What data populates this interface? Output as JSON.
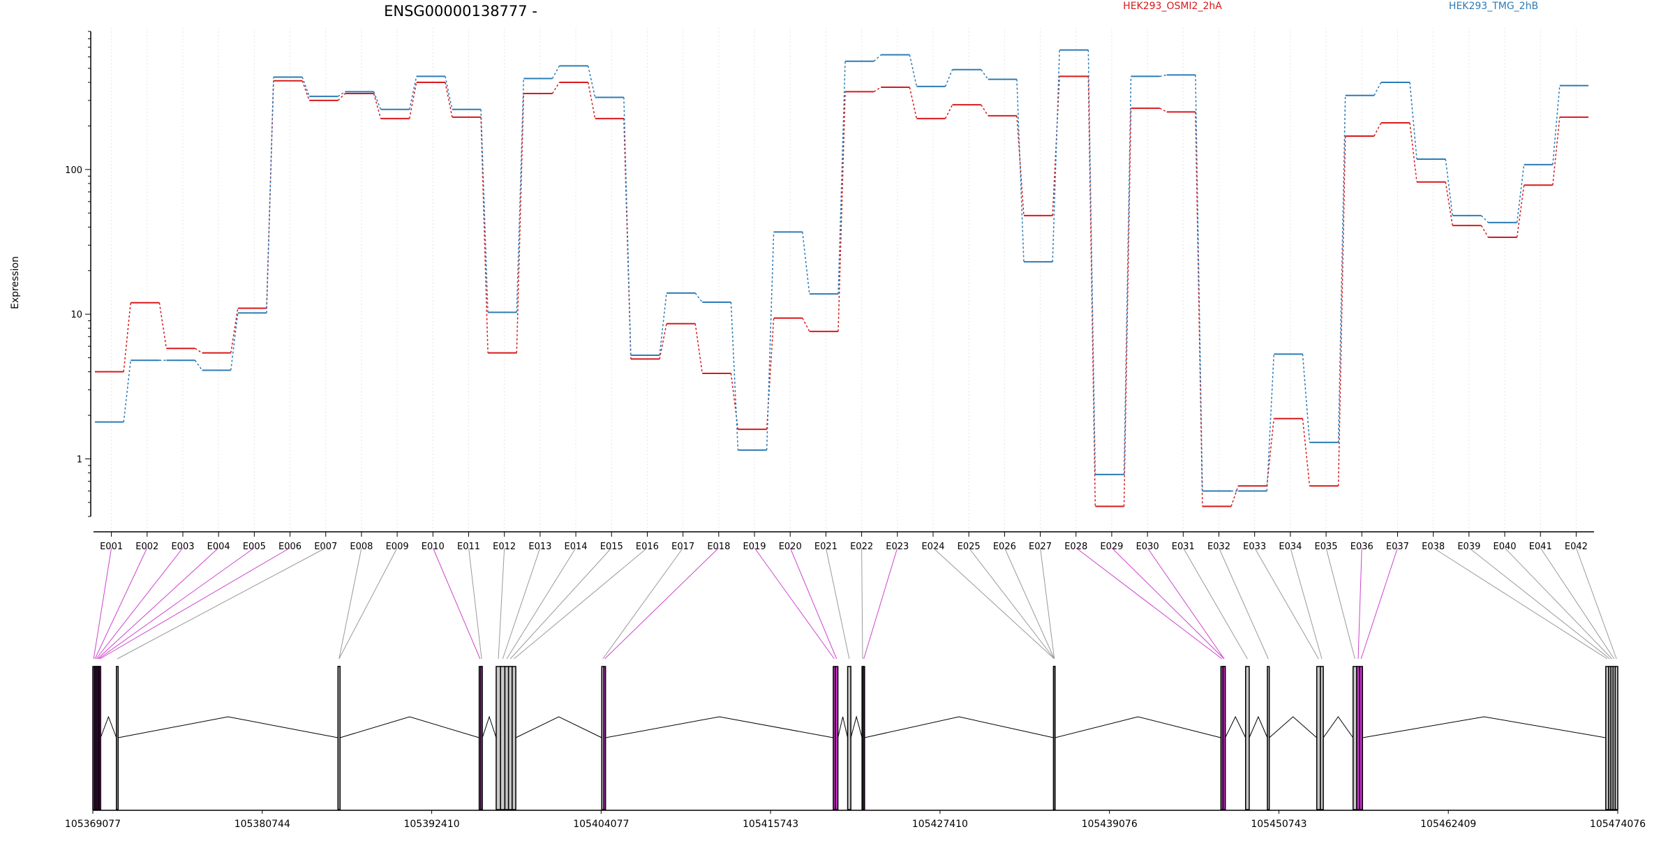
{
  "chart_data": {
    "type": "line",
    "title": "ENSG00000138777 -",
    "ylabel": "Expression",
    "y_scale": "log",
    "ylim": [
      0.4,
      900
    ],
    "y_ticks": [
      1,
      10,
      100
    ],
    "y_tick_labels": [
      "1",
      "10",
      "100"
    ],
    "grid": "vertical dotted lines at each exon",
    "legend_placement": "top, inline labels",
    "categories": [
      "E001",
      "E002",
      "E003",
      "E004",
      "E005",
      "E006",
      "E007",
      "E008",
      "E009",
      "E010",
      "E011",
      "E012",
      "E013",
      "E014",
      "E015",
      "E016",
      "E017",
      "E018",
      "E019",
      "E020",
      "E021",
      "E022",
      "E023",
      "E024",
      "E025",
      "E026",
      "E027",
      "E028",
      "E029",
      "E030",
      "E031",
      "E032",
      "E033",
      "E034",
      "E035",
      "E036",
      "E037",
      "E038",
      "E039",
      "E040",
      "E041",
      "E042"
    ],
    "series": [
      {
        "name": "HEK293_OSMI2_2hA",
        "color": "#d7191c",
        "values": [
          4.0,
          12.0,
          5.8,
          5.4,
          11.0,
          410,
          300,
          335,
          225,
          400,
          230,
          5.4,
          335,
          400,
          225,
          4.9,
          8.6,
          3.9,
          1.6,
          9.4,
          7.6,
          345,
          370,
          225,
          280,
          235,
          48,
          440,
          0.47,
          265,
          250,
          0.47,
          0.65,
          1.9,
          0.65,
          170,
          210,
          82,
          41,
          34,
          78,
          230
        ]
      },
      {
        "name": "HEK293_TMG_2hB",
        "color": "#2c7bb6",
        "values": [
          1.8,
          4.8,
          4.8,
          4.1,
          10.2,
          435,
          320,
          345,
          260,
          440,
          260,
          10.3,
          425,
          520,
          315,
          5.2,
          14,
          12.1,
          1.15,
          37,
          13.8,
          560,
          620,
          375,
          490,
          420,
          23,
          670,
          0.78,
          440,
          450,
          0.6,
          0.6,
          5.3,
          1.3,
          325,
          400,
          118,
          48,
          43,
          108,
          380
        ]
      }
    ],
    "gene_model": {
      "coordinate_labels": [
        "105369077",
        "105380744",
        "105392410",
        "105404077",
        "105415743",
        "105427410",
        "105439076",
        "105450743",
        "105462409",
        "105474076"
      ],
      "genome_start": 105369077,
      "genome_end": 105474076,
      "exon_highlight_color": "#cc33cc",
      "exon_normal_color": "#c8c8c8",
      "exons": [
        {
          "id": "E001",
          "start": 105369077,
          "end": 105369190,
          "highlight": true
        },
        {
          "id": "E002",
          "start": 105369190,
          "end": 105369260,
          "highlight": true
        },
        {
          "id": "E003",
          "start": 105369260,
          "end": 105369350,
          "highlight": true
        },
        {
          "id": "E004",
          "start": 105369350,
          "end": 105369440,
          "highlight": true
        },
        {
          "id": "E005",
          "start": 105369440,
          "end": 105369520,
          "highlight": true
        },
        {
          "id": "E006",
          "start": 105369520,
          "end": 105369610,
          "highlight": true
        },
        {
          "id": "E007",
          "start": 105370700,
          "end": 105370820,
          "highlight": false
        },
        {
          "id": "E008",
          "start": 105385960,
          "end": 105386100,
          "highlight": false
        },
        {
          "id": "E009",
          "start": 105385960,
          "end": 105386100,
          "highlight": false
        },
        {
          "id": "E010",
          "start": 105395680,
          "end": 105395800,
          "highlight": true
        },
        {
          "id": "E011",
          "start": 105395800,
          "end": 105395900,
          "highlight": false
        },
        {
          "id": "E012",
          "start": 105396850,
          "end": 105397150,
          "highlight": false
        },
        {
          "id": "E013",
          "start": 105397150,
          "end": 105397450,
          "highlight": false
        },
        {
          "id": "E014",
          "start": 105397450,
          "end": 105397700,
          "highlight": false
        },
        {
          "id": "E015",
          "start": 105397700,
          "end": 105397950,
          "highlight": false
        },
        {
          "id": "E016",
          "start": 105397950,
          "end": 105398200,
          "highlight": false
        },
        {
          "id": "E017",
          "start": 105404120,
          "end": 105404260,
          "highlight": false
        },
        {
          "id": "E018",
          "start": 105404260,
          "end": 105404380,
          "highlight": true
        },
        {
          "id": "E019",
          "start": 105420060,
          "end": 105420200,
          "highlight": true
        },
        {
          "id": "E020",
          "start": 105420200,
          "end": 105420380,
          "highlight": true
        },
        {
          "id": "E021",
          "start": 105421050,
          "end": 105421270,
          "highlight": false
        },
        {
          "id": "E022",
          "start": 105422040,
          "end": 105422120,
          "highlight": false
        },
        {
          "id": "E023",
          "start": 105422120,
          "end": 105422200,
          "highlight": true
        },
        {
          "id": "E024",
          "start": 105435230,
          "end": 105435330,
          "highlight": false
        },
        {
          "id": "E025",
          "start": 105435230,
          "end": 105435330,
          "highlight": false
        },
        {
          "id": "E026",
          "start": 105435230,
          "end": 105435330,
          "highlight": false
        },
        {
          "id": "E027",
          "start": 105435230,
          "end": 105435330,
          "highlight": false
        },
        {
          "id": "E028",
          "start": 105446750,
          "end": 105446900,
          "highlight": true
        },
        {
          "id": "E029",
          "start": 105446900,
          "end": 105447050,
          "highlight": true
        },
        {
          "id": "E030",
          "start": 105446900,
          "end": 105447050,
          "highlight": true
        },
        {
          "id": "E031",
          "start": 105448450,
          "end": 105448700,
          "highlight": false
        },
        {
          "id": "E032",
          "start": 105449950,
          "end": 105450080,
          "highlight": false
        },
        {
          "id": "E033",
          "start": 105453350,
          "end": 105453600,
          "highlight": false
        },
        {
          "id": "E034",
          "start": 105453600,
          "end": 105453800,
          "highlight": false
        },
        {
          "id": "E035",
          "start": 105455850,
          "end": 105456100,
          "highlight": false
        },
        {
          "id": "E036",
          "start": 105456100,
          "end": 105456300,
          "highlight": true
        },
        {
          "id": "E037",
          "start": 105456300,
          "end": 105456500,
          "highlight": true
        },
        {
          "id": "E038",
          "start": 105473250,
          "end": 105473450,
          "highlight": false
        },
        {
          "id": "E039",
          "start": 105473450,
          "end": 105473600,
          "highlight": false
        },
        {
          "id": "E040",
          "start": 105473600,
          "end": 105473750,
          "highlight": false
        },
        {
          "id": "E041",
          "start": 105473750,
          "end": 105473900,
          "highlight": false
        },
        {
          "id": "E042",
          "start": 105473900,
          "end": 105474076,
          "highlight": false
        }
      ]
    }
  }
}
